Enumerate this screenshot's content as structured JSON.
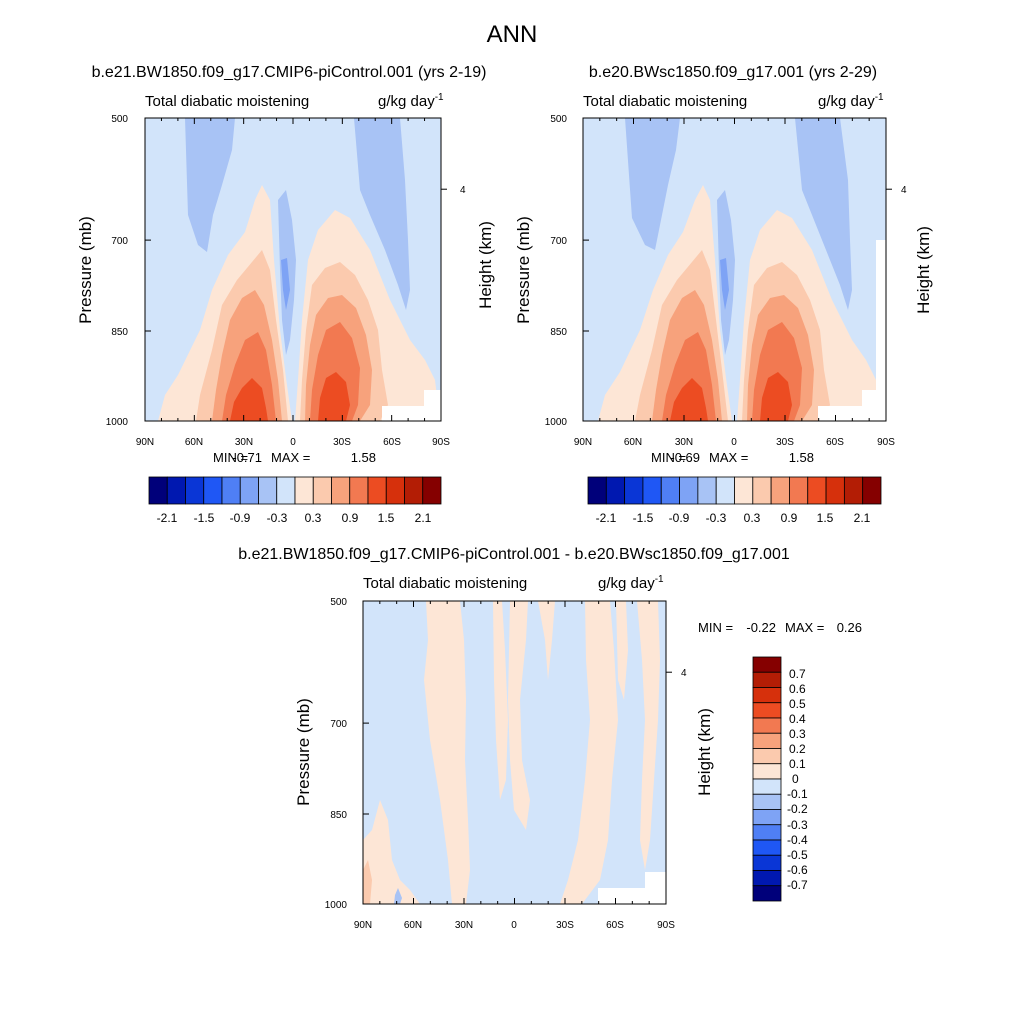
{
  "figure": {
    "title": "ANN"
  },
  "colors": {
    "contour_palette": [
      "#00007a",
      "#0018b0",
      "#0a36d6",
      "#1f57f5",
      "#4f7ff5",
      "#7ea3f5",
      "#a8c3f5",
      "#d2e4fa",
      "#fde6d6",
      "#fbcaae",
      "#f7a27c",
      "#f27951",
      "#ec4c22",
      "#d6300c",
      "#b31d05",
      "#850000"
    ],
    "diff_palette": [
      "#00007a",
      "#0018b0",
      "#0a36d6",
      "#1f57f5",
      "#4f7ff5",
      "#7ea3f5",
      "#a8c3f5",
      "#d2e4fa",
      "#fde6d6",
      "#fbcaae",
      "#f7a27c",
      "#f27951",
      "#ec4c22",
      "#d6300c",
      "#b31d05",
      "#850000"
    ]
  },
  "chart_data": [
    {
      "type": "heatmap",
      "title": "b.e21.BW1850.f09_g17.CMIP6-piControl.001 (yrs 2-19)",
      "subtitle_left": "Total diabatic moistening",
      "units": "g/kg day",
      "units_exp": "-1",
      "xlabel": "",
      "ylabel": "Pressure (mb)",
      "y2label": "Height (km)",
      "x_ticks": [
        "90N",
        "60N",
        "30N",
        "0",
        "30S",
        "60S",
        "90S"
      ],
      "y_ticks": [
        "500",
        "700",
        "850",
        "1000"
      ],
      "y2_ticks": [
        "4"
      ],
      "ylim": [
        1000,
        500
      ],
      "min_label": "MIN =",
      "min_value": "-0.71",
      "max_label": "MAX =",
      "max_value": "1.58",
      "colorbar_labels": [
        "-2.1",
        "-1.5",
        "-0.9",
        "-0.3",
        "0.3",
        "0.9",
        "1.5",
        "2.1"
      ]
    },
    {
      "type": "heatmap",
      "title": "b.e20.BWsc1850.f09_g17.001 (yrs 2-29)",
      "subtitle_left": "Total diabatic moistening",
      "units": "g/kg day",
      "units_exp": "-1",
      "xlabel": "",
      "ylabel": "Pressure (mb)",
      "y2label": "Height (km)",
      "x_ticks": [
        "90N",
        "60N",
        "30N",
        "0",
        "30S",
        "60S",
        "90S"
      ],
      "y_ticks": [
        "500",
        "700",
        "850",
        "1000"
      ],
      "y2_ticks": [
        "4"
      ],
      "ylim": [
        1000,
        500
      ],
      "min_label": "MIN =",
      "min_value": "-0.69",
      "max_label": "MAX =",
      "max_value": "1.58",
      "colorbar_labels": [
        "-2.1",
        "-1.5",
        "-0.9",
        "-0.3",
        "0.3",
        "0.9",
        "1.5",
        "2.1"
      ]
    },
    {
      "type": "heatmap",
      "title": "b.e21.BW1850.f09_g17.CMIP6-piControl.001 - b.e20.BWsc1850.f09_g17.001",
      "subtitle_left": "Total diabatic moistening",
      "units": "g/kg day",
      "units_exp": "-1",
      "xlabel": "",
      "ylabel": "Pressure (mb)",
      "y2label": "Height (km)",
      "x_ticks": [
        "90N",
        "60N",
        "30N",
        "0",
        "30S",
        "60S",
        "90S"
      ],
      "y_ticks": [
        "500",
        "700",
        "850",
        "1000"
      ],
      "y2_ticks": [
        "4"
      ],
      "ylim": [
        1000,
        500
      ],
      "min_label": "MIN =",
      "min_value": "-0.22",
      "max_label": "MAX =",
      "max_value": "0.26",
      "colorbar_labels": [
        "0.7",
        "0.6",
        "0.5",
        "0.4",
        "0.3",
        "0.2",
        "0.1",
        "0",
        "-0.1",
        "-0.2",
        "-0.3",
        "-0.4",
        "-0.5",
        "-0.6",
        "-0.7"
      ]
    }
  ]
}
